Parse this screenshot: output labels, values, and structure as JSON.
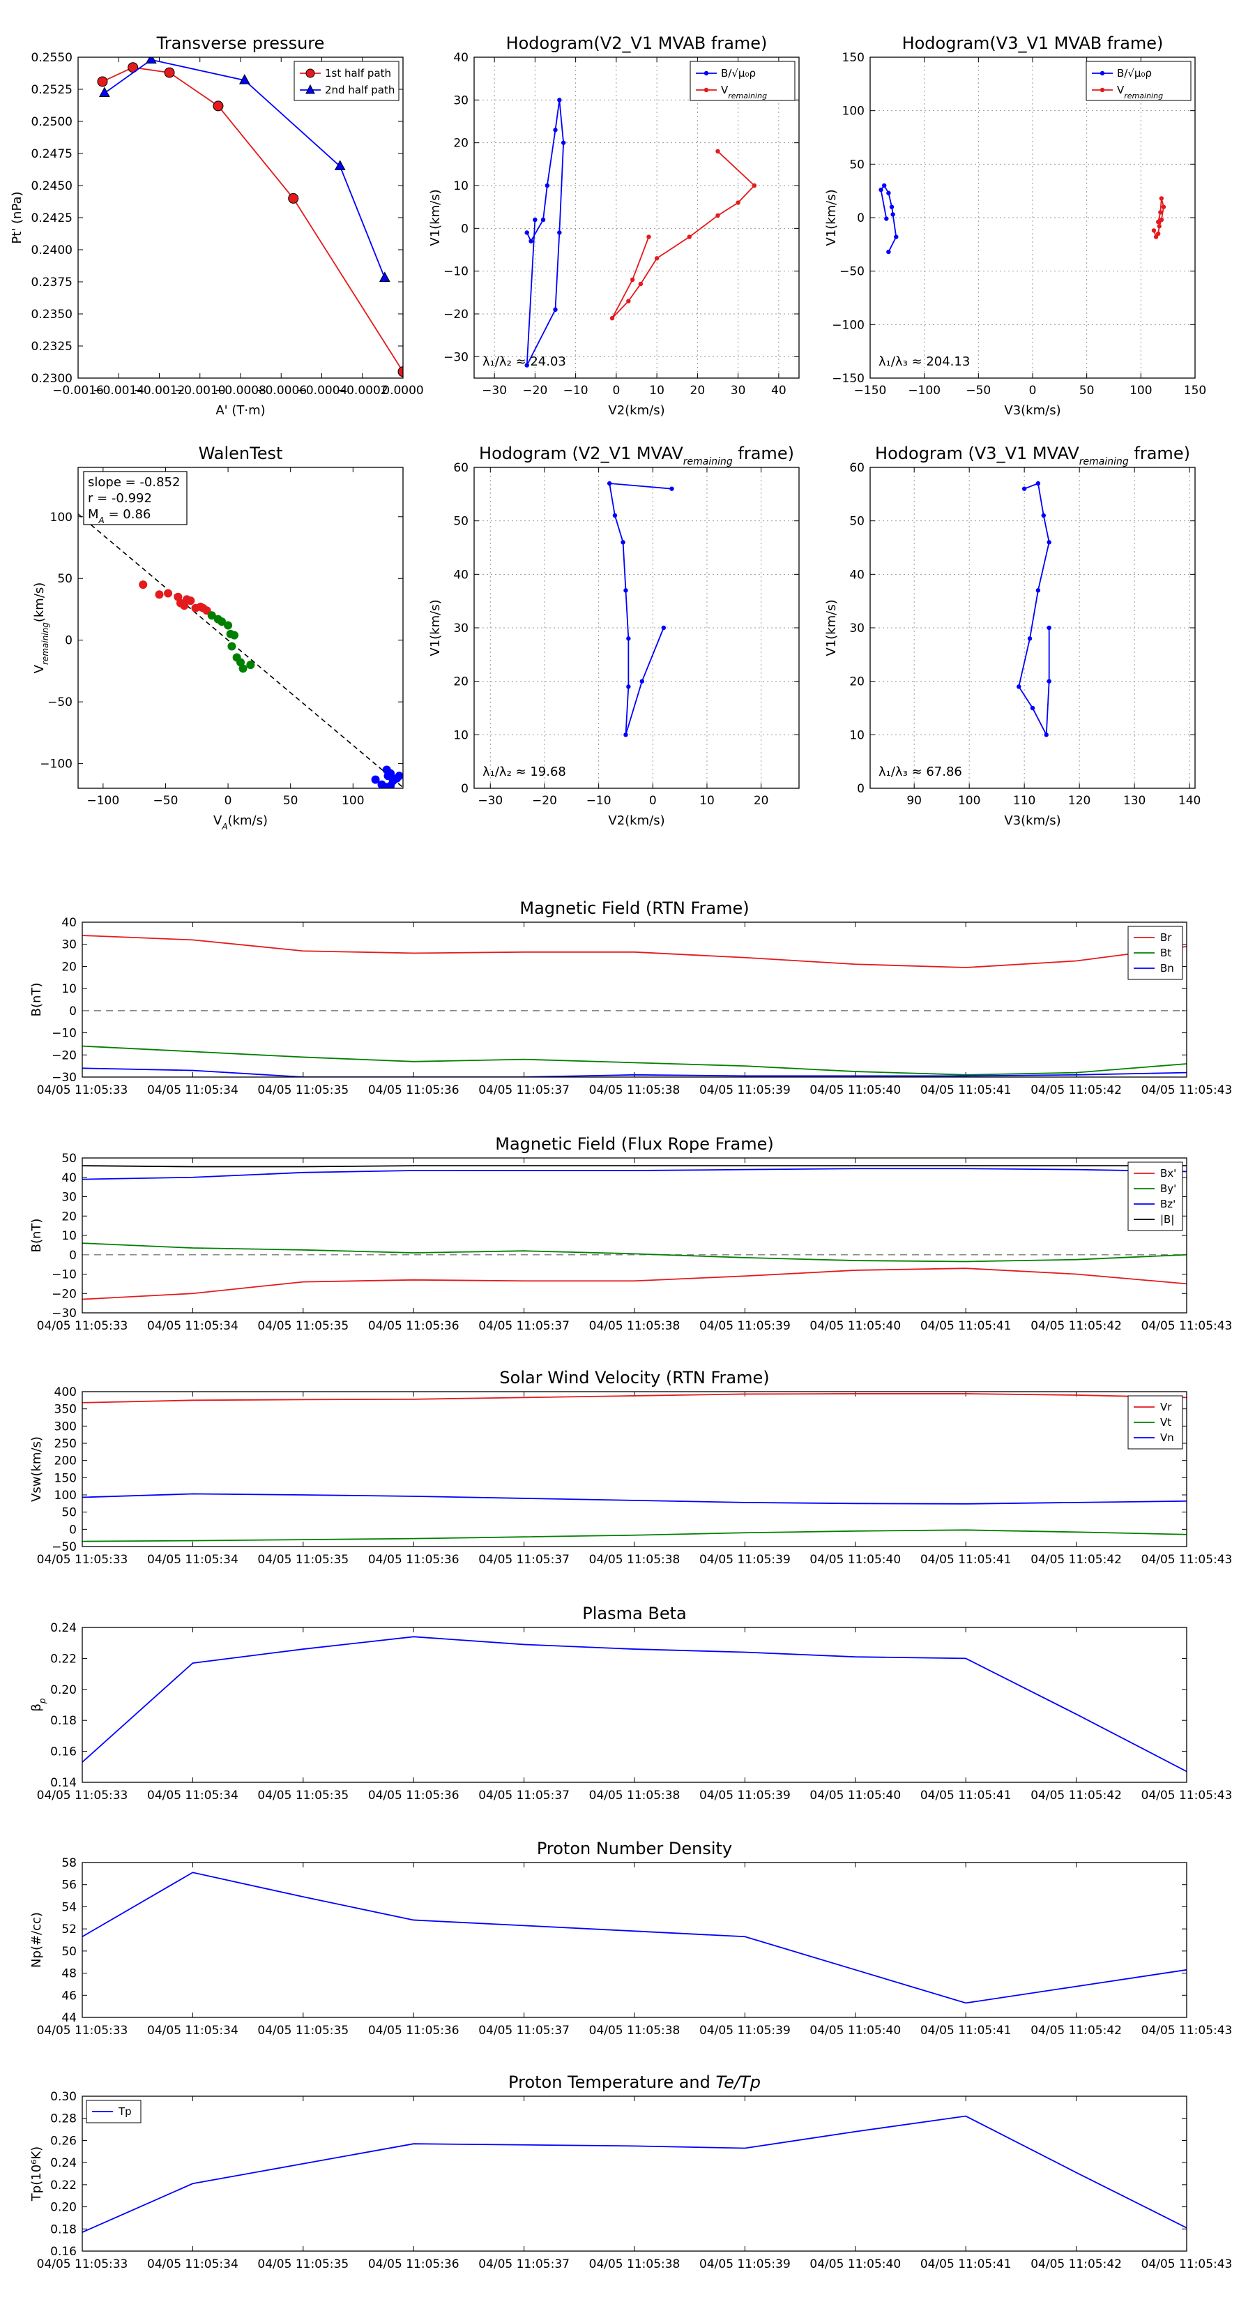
{
  "chart_data": [
    {
      "id": "tp",
      "type": "line",
      "title": "Transverse pressure",
      "xlabel": "A' (T·m)",
      "ylabel": "Pt' (nPa)",
      "xlim": [
        -0.0016,
        0.0
      ],
      "ylim": [
        0.23,
        0.255
      ],
      "xticks": [
        -0.0016,
        -0.0014,
        -0.0012,
        -0.001,
        -0.0008,
        -0.0006,
        -0.0004,
        -0.0002,
        0.0
      ],
      "xticklabels": [
        "−0.0016",
        "−0.0014",
        "−0.0012",
        "−0.0010",
        "−0.0008",
        "−0.0006",
        "−0.0004",
        "−0.0002",
        "0.0000"
      ],
      "yticks": [
        0.23,
        0.2325,
        0.235,
        0.2375,
        0.24,
        0.2425,
        0.245,
        0.2475,
        0.25,
        0.2525,
        0.255
      ],
      "yticklabels": [
        "0.2300",
        "0.2325",
        "0.2350",
        "0.2375",
        "0.2400",
        "0.2425",
        "0.2450",
        "0.2475",
        "0.2500",
        "0.2525",
        "0.2550"
      ],
      "grid": false,
      "legend": "top-right",
      "series": [
        {
          "name": "1st half path",
          "color": "#e41a1c",
          "marker": "circle",
          "x": [
            -0.00148,
            -0.00133,
            -0.00115,
            -0.00091,
            -0.00054,
            0.0
          ],
          "y": [
            0.2531,
            0.2542,
            0.2538,
            0.2512,
            0.244,
            0.2305
          ]
        },
        {
          "name": "2nd half path",
          "color": "#0000ff",
          "marker": "triangle",
          "x": [
            -0.00147,
            -0.00124,
            -0.00078,
            -0.00031,
            -9e-05
          ],
          "y": [
            0.2522,
            0.2548,
            0.2532,
            0.2465,
            0.2378
          ]
        }
      ]
    },
    {
      "id": "h12",
      "type": "line",
      "title": "Hodogram(V2_V1 MVAB frame)",
      "xlabel": "V2(km/s)",
      "ylabel": "V1(km/s)",
      "xlim": [
        -35,
        45
      ],
      "ylim": [
        -35,
        40
      ],
      "xticks": [
        -30,
        -20,
        -10,
        0,
        10,
        20,
        30,
        40
      ],
      "yticks": [
        -30,
        -20,
        -10,
        0,
        10,
        20,
        30,
        40
      ],
      "grid": true,
      "legend": "top-right",
      "annotation": "λ₁/λ₂ ≈ 24.03",
      "series": [
        {
          "name": "B/√μ₀ρ",
          "color": "#0000ff",
          "x": [
            -22,
            -21,
            -18,
            -17,
            -15,
            -14,
            -13,
            -14,
            -15,
            -22,
            -20
          ],
          "y": [
            -1,
            -3,
            2,
            10,
            23,
            30,
            20,
            -1,
            -19,
            -32,
            2
          ]
        },
        {
          "name": "Vremaining",
          "color": "#e41a1c",
          "x": [
            25,
            34,
            30,
            25,
            18,
            10,
            6,
            3,
            -1,
            4,
            8
          ],
          "y": [
            18,
            10,
            6,
            3,
            -2,
            -7,
            -13,
            -17,
            -21,
            -12,
            -2
          ]
        }
      ]
    },
    {
      "id": "h13",
      "type": "line",
      "title": "Hodogram(V3_V1 MVAB frame)",
      "xlabel": "V3(km/s)",
      "ylabel": "V1(km/s)",
      "xlim": [
        -150,
        150
      ],
      "ylim": [
        -150,
        150
      ],
      "xticks": [
        -150,
        -100,
        -50,
        0,
        50,
        100,
        150
      ],
      "yticks": [
        -150,
        -100,
        -50,
        0,
        50,
        100,
        150
      ],
      "grid": true,
      "legend": "top-right",
      "annotation": "λ₁/λ₃ ≈ 204.13",
      "series": [
        {
          "name": "B/√μ₀ρ",
          "color": "#0000ff",
          "x": [
            -135,
            -140,
            -137,
            -133,
            -130,
            -129,
            -126,
            -133
          ],
          "y": [
            -1,
            26,
            30,
            23,
            10,
            3,
            -18,
            -32
          ]
        },
        {
          "name": "Vremaining",
          "color": "#e41a1c",
          "x": [
            112,
            114,
            116,
            117,
            119,
            121,
            119,
            118,
            116
          ],
          "y": [
            -12,
            -18,
            -15,
            -8,
            -2,
            10,
            18,
            5,
            -4
          ]
        }
      ]
    },
    {
      "id": "walen",
      "type": "scatter",
      "title": "WalenTest",
      "xlabel": "V_A(km/s)",
      "ylabel": "V_remaining(km/s)",
      "xlim": [
        -120,
        140
      ],
      "ylim": [
        -120,
        140
      ],
      "xticks": [
        -100,
        -50,
        0,
        50,
        100
      ],
      "yticks": [
        -100,
        -50,
        0,
        50,
        100
      ],
      "grid": false,
      "legend": "top-left",
      "stats": [
        "slope = -0.852",
        "r = -0.992",
        "M_A = 0.86"
      ],
      "fit_line": {
        "slope": -0.852,
        "intercept": 0
      },
      "series": [
        {
          "name": "red",
          "color": "#e41a1c",
          "x": [
            -68,
            -55,
            -48,
            -40,
            -38,
            -33,
            -35,
            -30,
            -26,
            -22,
            -20,
            -17
          ],
          "y": [
            45,
            37,
            38,
            35,
            30,
            33,
            28,
            32,
            26,
            27,
            26,
            24
          ]
        },
        {
          "name": "green",
          "color": "#008000",
          "x": [
            -13,
            -8,
            -5,
            0,
            2,
            5,
            3,
            7,
            10,
            12,
            18
          ],
          "y": [
            20,
            17,
            15,
            12,
            5,
            4,
            -5,
            -14,
            -18,
            -23,
            -20
          ]
        },
        {
          "name": "blue",
          "color": "#0000ff",
          "x": [
            118,
            123,
            126,
            128,
            130,
            132,
            135,
            137,
            130,
            127
          ],
          "y": [
            -113,
            -117,
            -119,
            -110,
            -108,
            -114,
            -112,
            -110,
            -118,
            -105
          ]
        }
      ]
    },
    {
      "id": "h12r",
      "type": "line",
      "title": "Hodogram (V2_V1 MVAV_remaining frame)",
      "xlabel": "V2(km/s)",
      "ylabel": "V1(km/s)",
      "xlim": [
        -33,
        27
      ],
      "ylim": [
        0,
        60
      ],
      "xticks": [
        -30,
        -20,
        -10,
        0,
        10,
        20
      ],
      "yticks": [
        0,
        10,
        20,
        30,
        40,
        50,
        60
      ],
      "grid": true,
      "annotation": "λ₁/λ₂ ≈ 19.68",
      "series": [
        {
          "name": "V",
          "color": "#0000ff",
          "x": [
            3.5,
            -8,
            -7,
            -5.5,
            -5,
            -4.5,
            -4.5,
            -5,
            -2,
            2
          ],
          "y": [
            56,
            57,
            51,
            46,
            37,
            28,
            19,
            10,
            20,
            30
          ]
        }
      ]
    },
    {
      "id": "h13r",
      "type": "line",
      "title": "Hodogram (V3_V1 MVAV_remaining frame)",
      "xlabel": "V3(km/s)",
      "ylabel": "V1(km/s)",
      "xlim": [
        82,
        141
      ],
      "ylim": [
        0,
        60
      ],
      "xticks": [
        90,
        100,
        110,
        120,
        130,
        140
      ],
      "yticks": [
        0,
        10,
        20,
        30,
        40,
        50,
        60
      ],
      "grid": true,
      "annotation": "λ₁/λ₃ ≈ 67.86",
      "series": [
        {
          "name": "V",
          "color": "#0000ff",
          "x": [
            110,
            112.5,
            113.5,
            114.5,
            112.5,
            111,
            109,
            111.5,
            114,
            114.5,
            114.5
          ],
          "y": [
            56,
            57,
            51,
            46,
            37,
            28,
            19,
            15,
            10,
            20,
            30
          ]
        }
      ]
    },
    {
      "id": "mag_rtn",
      "type": "line",
      "title": "Magnetic Field (RTN Frame)",
      "ylabel": "B(nT)",
      "ylim": [
        -30,
        40
      ],
      "yticks": [
        -30,
        -20,
        -10,
        0,
        10,
        20,
        30,
        40
      ],
      "categories": [
        "04/05 11:05:33",
        "04/05 11:05:34",
        "04/05 11:05:35",
        "04/05 11:05:36",
        "04/05 11:05:37",
        "04/05 11:05:38",
        "04/05 11:05:39",
        "04/05 11:05:40",
        "04/05 11:05:41",
        "04/05 11:05:42",
        "04/05 11:05:43"
      ],
      "zero_line": true,
      "legend": "top-right",
      "series": [
        {
          "name": "Br",
          "color": "#e41a1c",
          "values": [
            34,
            32,
            27,
            26,
            26.5,
            26.5,
            24,
            21,
            19.5,
            22.5,
            29
          ]
        },
        {
          "name": "Bt",
          "color": "#008000",
          "values": [
            -16,
            -18.5,
            -21,
            -23,
            -22,
            -23.5,
            -25,
            -27.5,
            -29,
            -28,
            -24
          ]
        },
        {
          "name": "Bn",
          "color": "#0000ff",
          "values": [
            -26,
            -27,
            -30,
            -30,
            -30,
            -29,
            -29.5,
            -29.5,
            -29.5,
            -29,
            -28
          ]
        }
      ]
    },
    {
      "id": "mag_fr",
      "type": "line",
      "title": "Magnetic Field (Flux Rope Frame)",
      "ylabel": "B(nT)",
      "ylim": [
        -30,
        50
      ],
      "yticks": [
        -30,
        -20,
        -10,
        0,
        10,
        20,
        30,
        40,
        50
      ],
      "categories": [
        "04/05 11:05:33",
        "04/05 11:05:34",
        "04/05 11:05:35",
        "04/05 11:05:36",
        "04/05 11:05:37",
        "04/05 11:05:38",
        "04/05 11:05:39",
        "04/05 11:05:40",
        "04/05 11:05:41",
        "04/05 11:05:42",
        "04/05 11:05:43"
      ],
      "zero_line": true,
      "legend": "top-right",
      "series": [
        {
          "name": "Bx'",
          "color": "#e41a1c",
          "values": [
            -23,
            -20,
            -14,
            -13,
            -13.5,
            -13.5,
            -11,
            -8,
            -7,
            -10,
            -15
          ]
        },
        {
          "name": "By'",
          "color": "#008000",
          "values": [
            6,
            3.5,
            2.5,
            1,
            2,
            0.5,
            -1.5,
            -3,
            -3.5,
            -2.5,
            0
          ]
        },
        {
          "name": "Bz'",
          "color": "#0000ff",
          "values": [
            39,
            40,
            42.5,
            43.5,
            43.5,
            43.5,
            44,
            44.5,
            44.5,
            44,
            43
          ]
        },
        {
          "name": "|B|",
          "color": "#000000",
          "values": [
            46,
            45.5,
            45.5,
            46,
            46,
            46,
            46,
            46,
            46,
            46,
            46
          ]
        }
      ]
    },
    {
      "id": "vsw",
      "type": "line",
      "title": "Solar Wind Velocity (RTN Frame)",
      "ylabel": "Vsw(km/s)",
      "ylim": [
        -50,
        400
      ],
      "yticks": [
        -50,
        0,
        50,
        100,
        150,
        200,
        250,
        300,
        350,
        400
      ],
      "categories": [
        "04/05 11:05:33",
        "04/05 11:05:34",
        "04/05 11:05:35",
        "04/05 11:05:36",
        "04/05 11:05:37",
        "04/05 11:05:38",
        "04/05 11:05:39",
        "04/05 11:05:40",
        "04/05 11:05:41",
        "04/05 11:05:42",
        "04/05 11:05:43"
      ],
      "legend": "top-right",
      "series": [
        {
          "name": "Vr",
          "color": "#e41a1c",
          "values": [
            368,
            375,
            377,
            378,
            383,
            388,
            393,
            394,
            394,
            390,
            383
          ]
        },
        {
          "name": "Vt",
          "color": "#008000",
          "values": [
            -35,
            -33,
            -30,
            -27,
            -22,
            -17,
            -10,
            -5,
            -2,
            -8,
            -15
          ]
        },
        {
          "name": "Vn",
          "color": "#0000ff",
          "values": [
            93,
            103,
            100,
            96,
            90,
            84,
            78,
            75,
            74,
            78,
            82
          ]
        }
      ]
    },
    {
      "id": "beta",
      "type": "line",
      "title": "Plasma Beta",
      "ylabel": "β_p",
      "ylim": [
        0.14,
        0.24
      ],
      "yticks": [
        0.14,
        0.16,
        0.18,
        0.2,
        0.22,
        0.24
      ],
      "yticklabels": [
        "0.14",
        "0.16",
        "0.18",
        "0.20",
        "0.22",
        "0.24"
      ],
      "categories": [
        "04/05 11:05:33",
        "04/05 11:05:34",
        "04/05 11:05:35",
        "04/05 11:05:36",
        "04/05 11:05:37",
        "04/05 11:05:38",
        "04/05 11:05:39",
        "04/05 11:05:40",
        "04/05 11:05:41",
        "04/05 11:05:42",
        "04/05 11:05:43"
      ],
      "series": [
        {
          "name": "beta",
          "color": "#0000ff",
          "values": [
            0.153,
            0.217,
            0.226,
            0.234,
            0.229,
            0.226,
            0.224,
            0.221,
            0.22,
            0.184,
            0.147
          ]
        }
      ]
    },
    {
      "id": "np",
      "type": "line",
      "title": "Proton Number Density",
      "ylabel": "Np(#/cc)",
      "ylim": [
        44,
        58
      ],
      "yticks": [
        44,
        46,
        48,
        50,
        52,
        54,
        56,
        58
      ],
      "categories": [
        "04/05 11:05:33",
        "04/05 11:05:34",
        "04/05 11:05:35",
        "04/05 11:05:36",
        "04/05 11:05:37",
        "04/05 11:05:38",
        "04/05 11:05:39",
        "04/05 11:05:40",
        "04/05 11:05:41",
        "04/05 11:05:42",
        "04/05 11:05:43"
      ],
      "series": [
        {
          "name": "Np",
          "color": "#0000ff",
          "values": [
            51.3,
            57.1,
            54.9,
            52.8,
            52.3,
            51.8,
            51.3,
            48.3,
            45.3,
            46.8,
            48.3
          ]
        }
      ]
    },
    {
      "id": "tp_temp",
      "type": "line",
      "title": "Proton Temperature and Te/Tp",
      "ylabel": "Tp(10⁶K)",
      "ylim": [
        0.16,
        0.3
      ],
      "yticks": [
        0.16,
        0.18,
        0.2,
        0.22,
        0.24,
        0.26,
        0.28,
        0.3
      ],
      "yticklabels": [
        "0.16",
        "0.18",
        "0.20",
        "0.22",
        "0.24",
        "0.26",
        "0.28",
        "0.30"
      ],
      "categories": [
        "04/05 11:05:33",
        "04/05 11:05:34",
        "04/05 11:05:35",
        "04/05 11:05:36",
        "04/05 11:05:37",
        "04/05 11:05:38",
        "04/05 11:05:39",
        "04/05 11:05:40",
        "04/05 11:05:41",
        "04/05 11:05:42",
        "04/05 11:05:43"
      ],
      "legend": "top-left",
      "series": [
        {
          "name": "Tp",
          "color": "#0000ff",
          "values": [
            0.177,
            0.221,
            0.239,
            0.257,
            0.256,
            0.255,
            0.253,
            0.268,
            0.282,
            0.231,
            0.181
          ]
        }
      ]
    }
  ]
}
